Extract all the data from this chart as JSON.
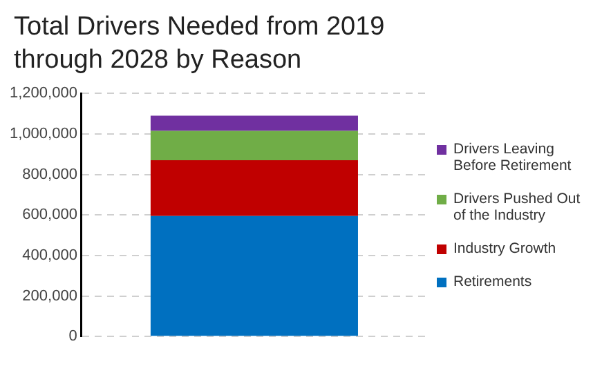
{
  "chart_data": {
    "type": "bar",
    "title": "Total Drivers Needed from 2019 through 2028 by Reason",
    "stacked": true,
    "categories": [
      null
    ],
    "series": [
      {
        "name": "Retirements",
        "color": "#0070c0",
        "values": [
          595000
        ]
      },
      {
        "name": "Industry Growth",
        "color": "#c00000",
        "values": [
          275000
        ]
      },
      {
        "name": "Drivers Pushed Out of the Industry",
        "color": "#70ad47",
        "values": [
          145000
        ]
      },
      {
        "name": "Drivers Leaving Before Retirement",
        "color": "#7030a0",
        "values": [
          75000
        ]
      }
    ],
    "ylim": [
      0,
      1200000
    ],
    "yticks": [
      0,
      {
        "value": 200000,
        "label": "200,000"
      },
      {
        "value": 400000,
        "label": "400,000"
      },
      {
        "value": 600000,
        "label": "600,000"
      },
      {
        "value": 800000,
        "label": "800,000"
      },
      {
        "value": 1000000,
        "label": "1,000,000"
      },
      {
        "value": 1200000,
        "label": "1,200,000"
      }
    ],
    "grid": "y",
    "legend": "right"
  }
}
